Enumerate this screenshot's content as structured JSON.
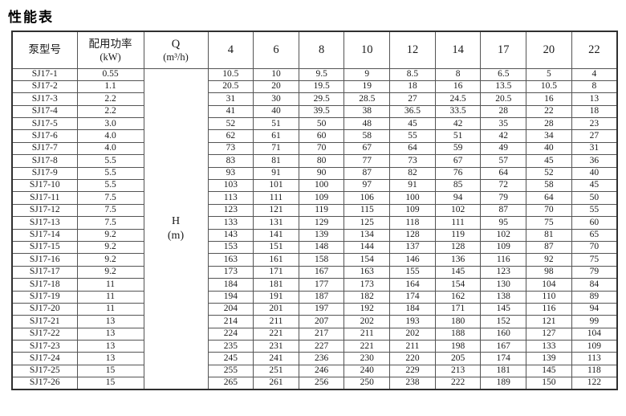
{
  "page": {
    "title": "性能表"
  },
  "table": {
    "headers": {
      "model": "泵型号",
      "power_line1": "配用功率",
      "power_line2": "(kW)",
      "flow_label_line1": "Q",
      "flow_label_line2": "(m³/h)",
      "flow_columns": [
        "4",
        "6",
        "8",
        "10",
        "12",
        "14",
        "17",
        "20",
        "22"
      ]
    },
    "head_unit": {
      "line1": "H",
      "line2": "(m)"
    },
    "rows": [
      {
        "model": "SJ17-1",
        "power": "0.55",
        "values": [
          "10.5",
          "10",
          "9.5",
          "9",
          "8.5",
          "8",
          "6.5",
          "5",
          "4"
        ]
      },
      {
        "model": "SJ17-2",
        "power": "1.1",
        "values": [
          "20.5",
          "20",
          "19.5",
          "19",
          "18",
          "16",
          "13.5",
          "10.5",
          "8"
        ]
      },
      {
        "model": "SJ17-3",
        "power": "2.2",
        "values": [
          "31",
          "30",
          "29.5",
          "28.5",
          "27",
          "24.5",
          "20.5",
          "16",
          "13"
        ]
      },
      {
        "model": "SJ17-4",
        "power": "2.2",
        "values": [
          "41",
          "40",
          "39.5",
          "38",
          "36.5",
          "33.5",
          "28",
          "22",
          "18"
        ]
      },
      {
        "model": "SJ17-5",
        "power": "3.0",
        "values": [
          "52",
          "51",
          "50",
          "48",
          "45",
          "42",
          "35",
          "28",
          "23"
        ]
      },
      {
        "model": "SJ17-6",
        "power": "4.0",
        "values": [
          "62",
          "61",
          "60",
          "58",
          "55",
          "51",
          "42",
          "34",
          "27"
        ]
      },
      {
        "model": "SJ17-7",
        "power": "4.0",
        "values": [
          "73",
          "71",
          "70",
          "67",
          "64",
          "59",
          "49",
          "40",
          "31"
        ]
      },
      {
        "model": "SJ17-8",
        "power": "5.5",
        "values": [
          "83",
          "81",
          "80",
          "77",
          "73",
          "67",
          "57",
          "45",
          "36"
        ]
      },
      {
        "model": "SJ17-9",
        "power": "5.5",
        "values": [
          "93",
          "91",
          "90",
          "87",
          "82",
          "76",
          "64",
          "52",
          "40"
        ]
      },
      {
        "model": "SJ17-10",
        "power": "5.5",
        "values": [
          "103",
          "101",
          "100",
          "97",
          "91",
          "85",
          "72",
          "58",
          "45"
        ]
      },
      {
        "model": "SJ17-11",
        "power": "7.5",
        "values": [
          "113",
          "111",
          "109",
          "106",
          "100",
          "94",
          "79",
          "64",
          "50"
        ]
      },
      {
        "model": "SJ17-12",
        "power": "7.5",
        "values": [
          "123",
          "121",
          "119",
          "115",
          "109",
          "102",
          "87",
          "70",
          "55"
        ]
      },
      {
        "model": "SJ17-13",
        "power": "7.5",
        "values": [
          "133",
          "131",
          "129",
          "125",
          "118",
          "111",
          "95",
          "75",
          "60"
        ]
      },
      {
        "model": "SJ17-14",
        "power": "9.2",
        "values": [
          "143",
          "141",
          "139",
          "134",
          "128",
          "119",
          "102",
          "81",
          "65"
        ]
      },
      {
        "model": "SJ17-15",
        "power": "9.2",
        "values": [
          "153",
          "151",
          "148",
          "144",
          "137",
          "128",
          "109",
          "87",
          "70"
        ]
      },
      {
        "model": "SJ17-16",
        "power": "9.2",
        "values": [
          "163",
          "161",
          "158",
          "154",
          "146",
          "136",
          "116",
          "92",
          "75"
        ]
      },
      {
        "model": "SJ17-17",
        "power": "9.2",
        "values": [
          "173",
          "171",
          "167",
          "163",
          "155",
          "145",
          "123",
          "98",
          "79"
        ]
      },
      {
        "model": "SJ17-18",
        "power": "11",
        "values": [
          "184",
          "181",
          "177",
          "173",
          "164",
          "154",
          "130",
          "104",
          "84"
        ]
      },
      {
        "model": "SJ17-19",
        "power": "11",
        "values": [
          "194",
          "191",
          "187",
          "182",
          "174",
          "162",
          "138",
          "110",
          "89"
        ]
      },
      {
        "model": "SJ17-20",
        "power": "11",
        "values": [
          "204",
          "201",
          "197",
          "192",
          "184",
          "171",
          "145",
          "116",
          "94"
        ]
      },
      {
        "model": "SJ17-21",
        "power": "13",
        "values": [
          "214",
          "211",
          "207",
          "202",
          "193",
          "180",
          "152",
          "121",
          "99"
        ]
      },
      {
        "model": "SJ17-22",
        "power": "13",
        "values": [
          "224",
          "221",
          "217",
          "211",
          "202",
          "188",
          "160",
          "127",
          "104"
        ]
      },
      {
        "model": "SJ17-23",
        "power": "13",
        "values": [
          "235",
          "231",
          "227",
          "221",
          "211",
          "198",
          "167",
          "133",
          "109"
        ]
      },
      {
        "model": "SJ17-24",
        "power": "13",
        "values": [
          "245",
          "241",
          "236",
          "230",
          "220",
          "205",
          "174",
          "139",
          "113"
        ]
      },
      {
        "model": "SJ17-25",
        "power": "15",
        "values": [
          "255",
          "251",
          "246",
          "240",
          "229",
          "213",
          "181",
          "145",
          "118"
        ]
      },
      {
        "model": "SJ17-26",
        "power": "15",
        "values": [
          "265",
          "261",
          "256",
          "250",
          "238",
          "222",
          "189",
          "150",
          "122"
        ]
      }
    ]
  }
}
